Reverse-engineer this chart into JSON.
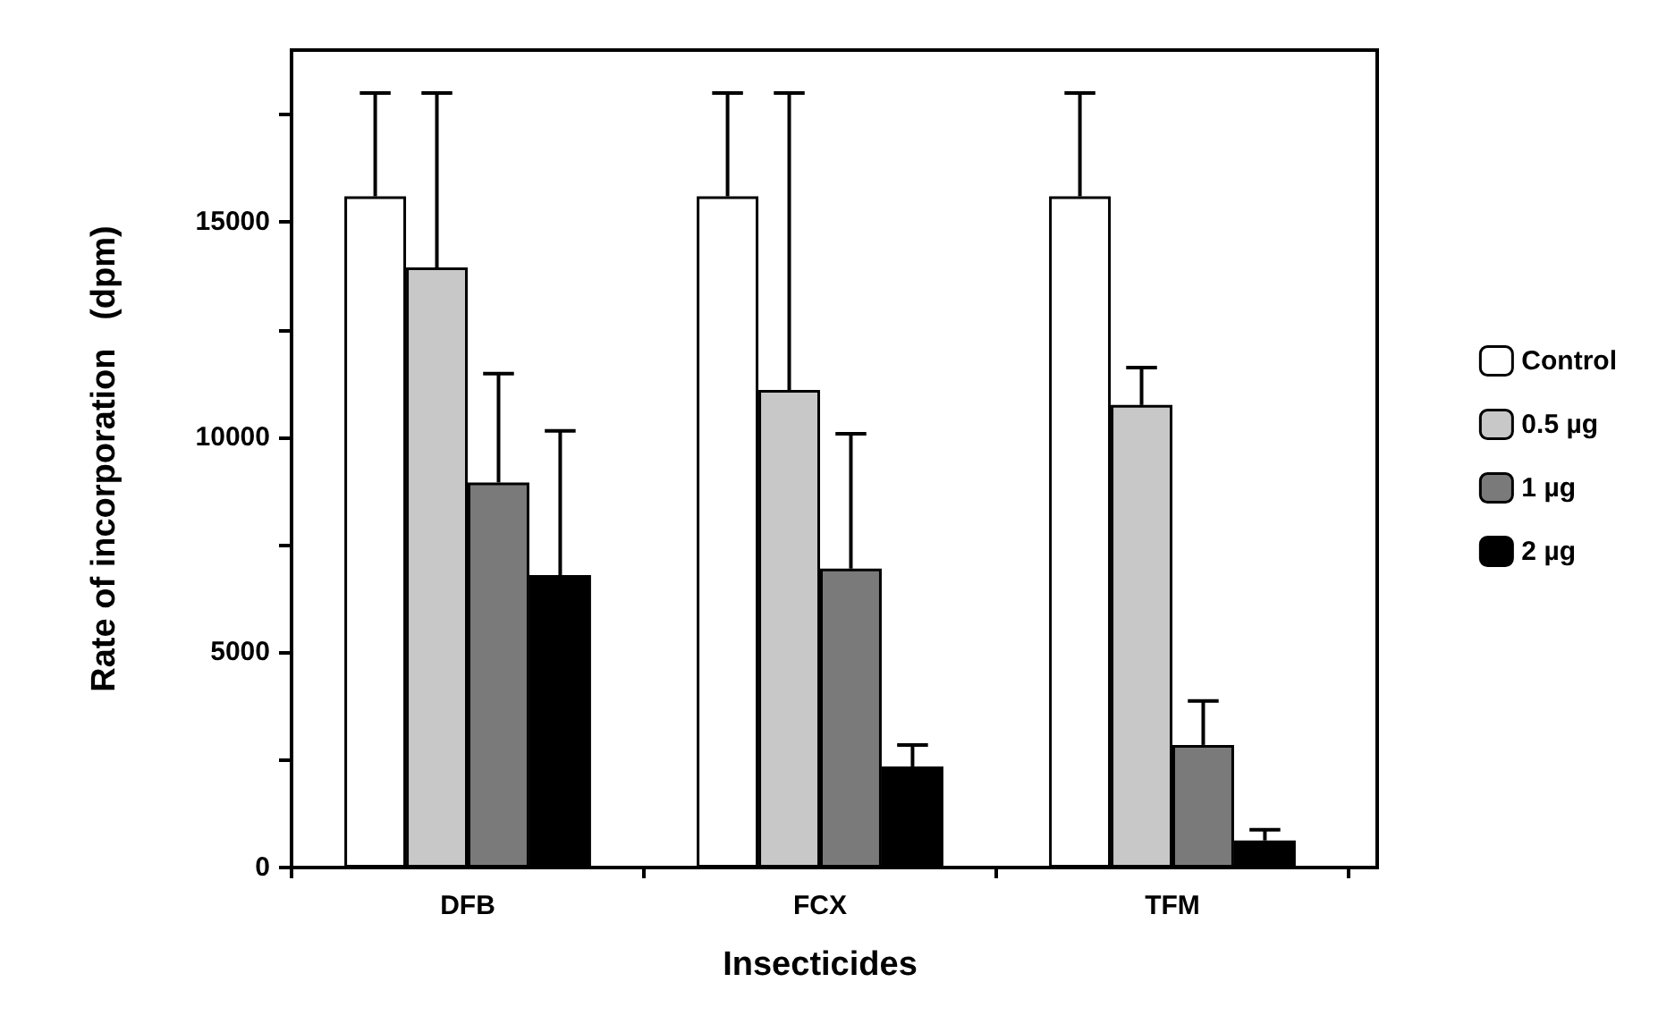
{
  "chart_data": {
    "type": "bar",
    "xlabel": "Insecticides",
    "ylabel": "Rate of incorporation   (dpm)",
    "categories": [
      "DFB",
      "FCX",
      "TFM"
    ],
    "series": [
      {
        "name": "Control",
        "color": "#ffffff",
        "values": [
          15600,
          15600,
          15600
        ],
        "errors": [
          [
            15600,
            18000
          ],
          [
            15600,
            18000
          ],
          [
            15600,
            18000
          ]
        ]
      },
      {
        "name": "0.5 µg",
        "color": "#c8c8c8",
        "values": [
          13950,
          11100,
          10750
        ],
        "errors": [
          [
            13950,
            18000
          ],
          [
            11100,
            18000
          ],
          [
            10750,
            11620
          ]
        ]
      },
      {
        "name": "1 µg",
        "color": "#7a7a7a",
        "values": [
          8950,
          6950,
          2850
        ],
        "errors": [
          [
            8950,
            11480
          ],
          [
            6950,
            10080
          ],
          [
            2850,
            3870
          ]
        ]
      },
      {
        "name": "2 µg",
        "color": "#000000",
        "values": [
          6800,
          2350,
          630
        ],
        "errors": [
          [
            6800,
            10150
          ],
          [
            2350,
            2850
          ],
          [
            630,
            880
          ]
        ]
      }
    ],
    "ylim": [
      0,
      19000
    ],
    "yticks": [
      0,
      {
        "value": 2500,
        "label": null
      },
      5000,
      {
        "value": 7500,
        "label": null
      },
      10000,
      {
        "value": 12500,
        "label": null
      },
      15000,
      {
        "value": 17500,
        "label": null
      }
    ],
    "grid": false,
    "legend": "right"
  }
}
